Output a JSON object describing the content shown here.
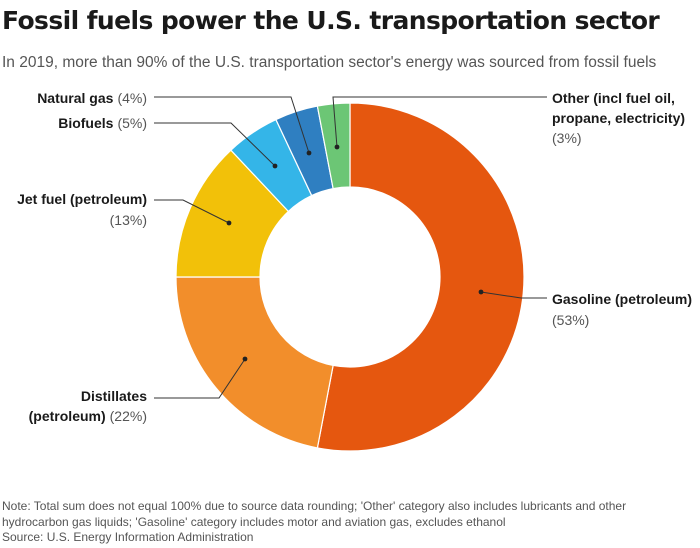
{
  "header": {
    "title": "Fossil fuels power the U.S. transportation sector",
    "subtitle": "In 2019, more than 90% of the U.S. transportation sector's energy was sourced from fossil fuels"
  },
  "chart_data": {
    "type": "pie",
    "variant": "donut",
    "start_angle_deg": 0,
    "direction": "clockwise",
    "slices": [
      {
        "key": "gasoline",
        "label": "Gasoline (petroleum)",
        "pct_label": "(53%)",
        "value": 53,
        "color": "#e5570f"
      },
      {
        "key": "distillates",
        "label": "Distillates (petroleum)",
        "pct_label": "(22%)",
        "value": 22,
        "color": "#f28e2b"
      },
      {
        "key": "jet-fuel",
        "label": "Jet fuel (petroleum)",
        "pct_label": "(13%)",
        "value": 13,
        "color": "#f2c109"
      },
      {
        "key": "biofuels",
        "label": "Biofuels",
        "pct_label": "(5%)",
        "value": 5,
        "color": "#34b5e8"
      },
      {
        "key": "natural-gas",
        "label": "Natural gas",
        "pct_label": "(4%)",
        "value": 4,
        "color": "#2f7fc1"
      },
      {
        "key": "other",
        "label": "Other (incl fuel oil, propane, electricity)",
        "pct_label": "(3%)",
        "value": 3,
        "color": "#6cc675"
      }
    ]
  },
  "footer": {
    "note": "Note: Total sum does not equal 100% due to source data rounding; 'Other' category also includes lubricants and other hydrocarbon gas liquids; 'Gasoline' category includes motor and aviation gas, excludes ethanol",
    "source": "Source: U.S. Energy Information Administration"
  }
}
